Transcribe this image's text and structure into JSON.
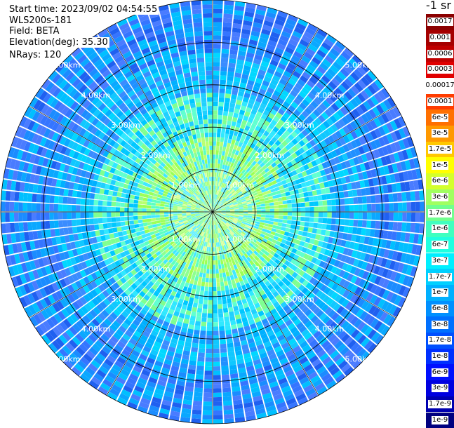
{
  "info": {
    "start_time": "Start time: 2023/09/02 04:54:55",
    "instrument": "WLS200s-181",
    "field": "Field: BETA",
    "elevation": "Elevation(deg): 35.30",
    "nrays": "NRays: 120"
  },
  "colorbar": {
    "units": "-1 sr",
    "labels": [
      "0.0017",
      "0.001",
      "0.0006",
      "0.0003",
      "0.00017",
      "0.0001",
      "6e-5",
      "3e-5",
      "1.7e-5",
      "1e-5",
      "6e-6",
      "3e-6",
      "1.7e-6",
      "1e-6",
      "6e-7",
      "3e-7",
      "1.7e-7",
      "1e-7",
      "6e-8",
      "3e-8",
      "1.7e-8",
      "1e-8",
      "6e-9",
      "3e-9",
      "1.7e-9",
      "1e-9"
    ],
    "colors": [
      "#8b0000",
      "#a50000",
      "#c00000",
      "#e00000",
      "#ffffff",
      "#ff3c00",
      "#ff7000",
      "#ff9900",
      "#ffc800",
      "#ffff00",
      "#d4ff2b",
      "#a0ff60",
      "#70ff8f",
      "#40ffbf",
      "#20ffe0",
      "#00f0ff",
      "#00d0ff",
      "#00b0ff",
      "#0090ff",
      "#0070ff",
      "#0050ff",
      "#0030ff",
      "#0010ff",
      "#0000e0",
      "#0000b0",
      "#000080"
    ]
  },
  "chart_data": {
    "type": "heatmap",
    "plot": "ppi",
    "field": "BETA",
    "nrays": 120,
    "elevation_deg": 35.3,
    "range_ring_labels": [
      "1.00km",
      "2.00km",
      "3.00km",
      "4.00km",
      "5.00km"
    ],
    "range_rings_km": [
      1,
      2,
      3,
      4,
      5
    ],
    "max_range_km": 5,
    "azimuth_spokes_deg": [
      0,
      30,
      60,
      90,
      120,
      150,
      180,
      210,
      240,
      270,
      300,
      330
    ]
  }
}
